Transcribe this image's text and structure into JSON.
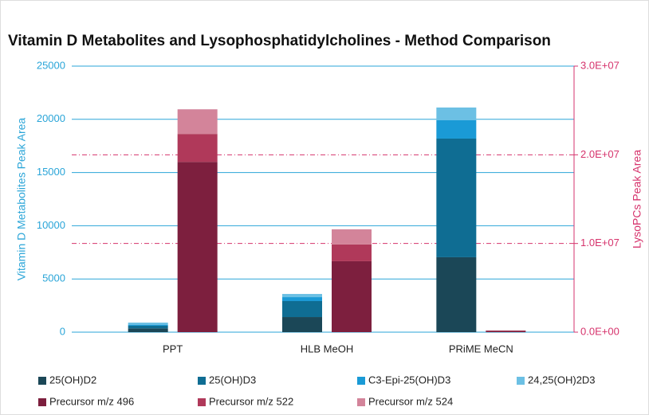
{
  "chart_data": {
    "type": "bar",
    "stacked": true,
    "title": "Vitamin D Metabolites and Lysophosphatidylcholines - Method Comparison",
    "y_label": "Vitamin D Metabolites Peak Area",
    "y2_label": "LysoPCs Peak Area",
    "categories": [
      "PPT",
      "HLB MeOH",
      "PRiME MeCN"
    ],
    "ylim": [
      0,
      25000
    ],
    "yticks": [
      0,
      5000,
      10000,
      15000,
      20000,
      25000
    ],
    "y2lim": [
      0,
      30000000
    ],
    "y2ticks": [
      {
        "value": 0,
        "label": "0.0E+00"
      },
      {
        "value": 10000000,
        "label": "1.0E+07"
      },
      {
        "value": 20000000,
        "label": "2.0E+07"
      },
      {
        "value": 30000000,
        "label": "3.0E+07"
      }
    ],
    "grid": true,
    "series": [
      {
        "name": "25(OH)D2",
        "color": "#1b4757",
        "values": [
          350,
          1420,
          7040
        ]
      },
      {
        "name": "25(OH)D3",
        "color": "#0f6d93",
        "values": [
          250,
          1500,
          11150
        ]
      },
      {
        "name": "C3-Epi-25(OH)D3",
        "color": "#1a9ad6",
        "values": [
          100,
          370,
          1720
        ]
      },
      {
        "name": "24,25(OH)2D3",
        "color": "#6cc0e4",
        "values": [
          200,
          300,
          1200
        ]
      },
      {
        "name": "Precursor m/z 496",
        "color": "#7d1f3e",
        "axis": "y2",
        "values": [
          19200000,
          8000000,
          150000
        ]
      },
      {
        "name": "Precursor m/z 522",
        "color": "#b0395a",
        "axis": "y2",
        "values": [
          3150000,
          1900000,
          30000
        ]
      },
      {
        "name": "Precursor m/z 524",
        "color": "#d3849a",
        "axis": "y2",
        "values": [
          2780000,
          1700000,
          20000
        ]
      }
    ]
  }
}
